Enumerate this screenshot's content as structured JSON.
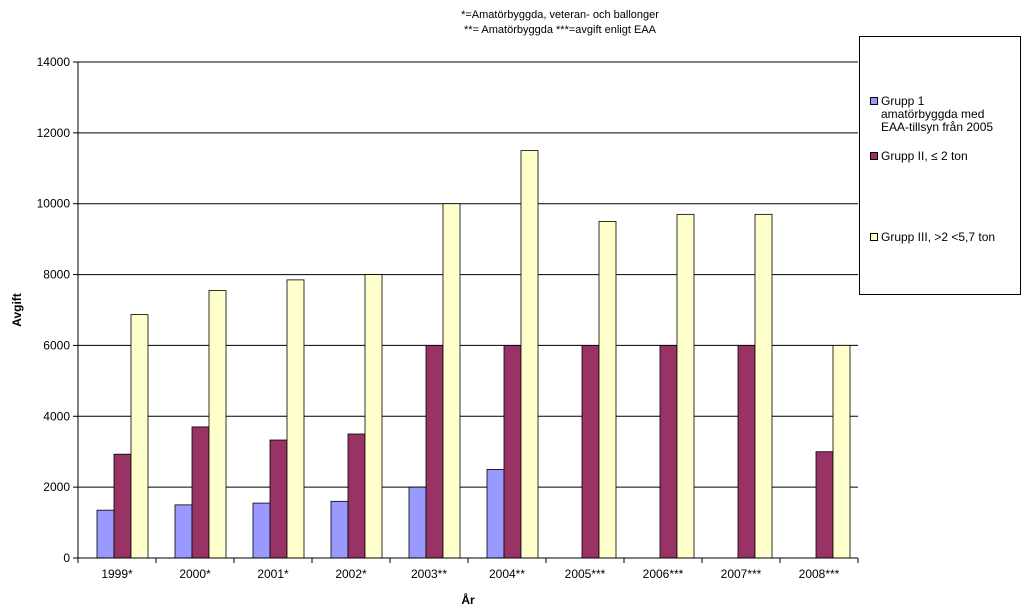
{
  "chart_data": {
    "type": "bar",
    "subtitle_lines": [
      "*=Amatörbyggda, veteran- och  ballonger",
      "**= Amatörbyggda ***=avgift enligt EAA"
    ],
    "xlabel": "År",
    "ylabel": "Avgift",
    "ylim": [
      0,
      14000
    ],
    "yticks": [
      "0",
      "2000",
      "4000",
      "6000",
      "8000",
      "10000",
      "12000",
      "14000"
    ],
    "grid": true,
    "legend_position": "right",
    "categories": [
      "1999*",
      "2000*",
      "2001*",
      "2002*",
      "2003**",
      "2004**",
      "2005***",
      "2006***",
      "2007***",
      "2008***"
    ],
    "series": [
      {
        "name": "Grupp 1 amatörbyggda med EAA-tillsyn från 2005",
        "legend_lines": [
          "Grupp 1",
          "amatörbyggda med",
          "EAA-tillsyn från 2005"
        ],
        "color": "#9999ff",
        "values": [
          1350,
          1500,
          1550,
          1600,
          2000,
          2500,
          0,
          0,
          0,
          0
        ]
      },
      {
        "name": "Grupp II, ≤ 2 ton",
        "legend_lines": [
          "Grupp II, ≤ 2 ton"
        ],
        "color": "#993366",
        "values": [
          2930,
          3700,
          3330,
          3500,
          6000,
          6000,
          6000,
          6000,
          6000,
          3000
        ]
      },
      {
        "name": "Grupp III, >2  <5,7 ton",
        "legend_lines": [
          "Grupp III, >2  <5,7 ton"
        ],
        "color": "#ffffcc",
        "values": [
          6870,
          7550,
          7850,
          8000,
          10000,
          11500,
          9500,
          9700,
          9700,
          6000
        ]
      }
    ]
  }
}
